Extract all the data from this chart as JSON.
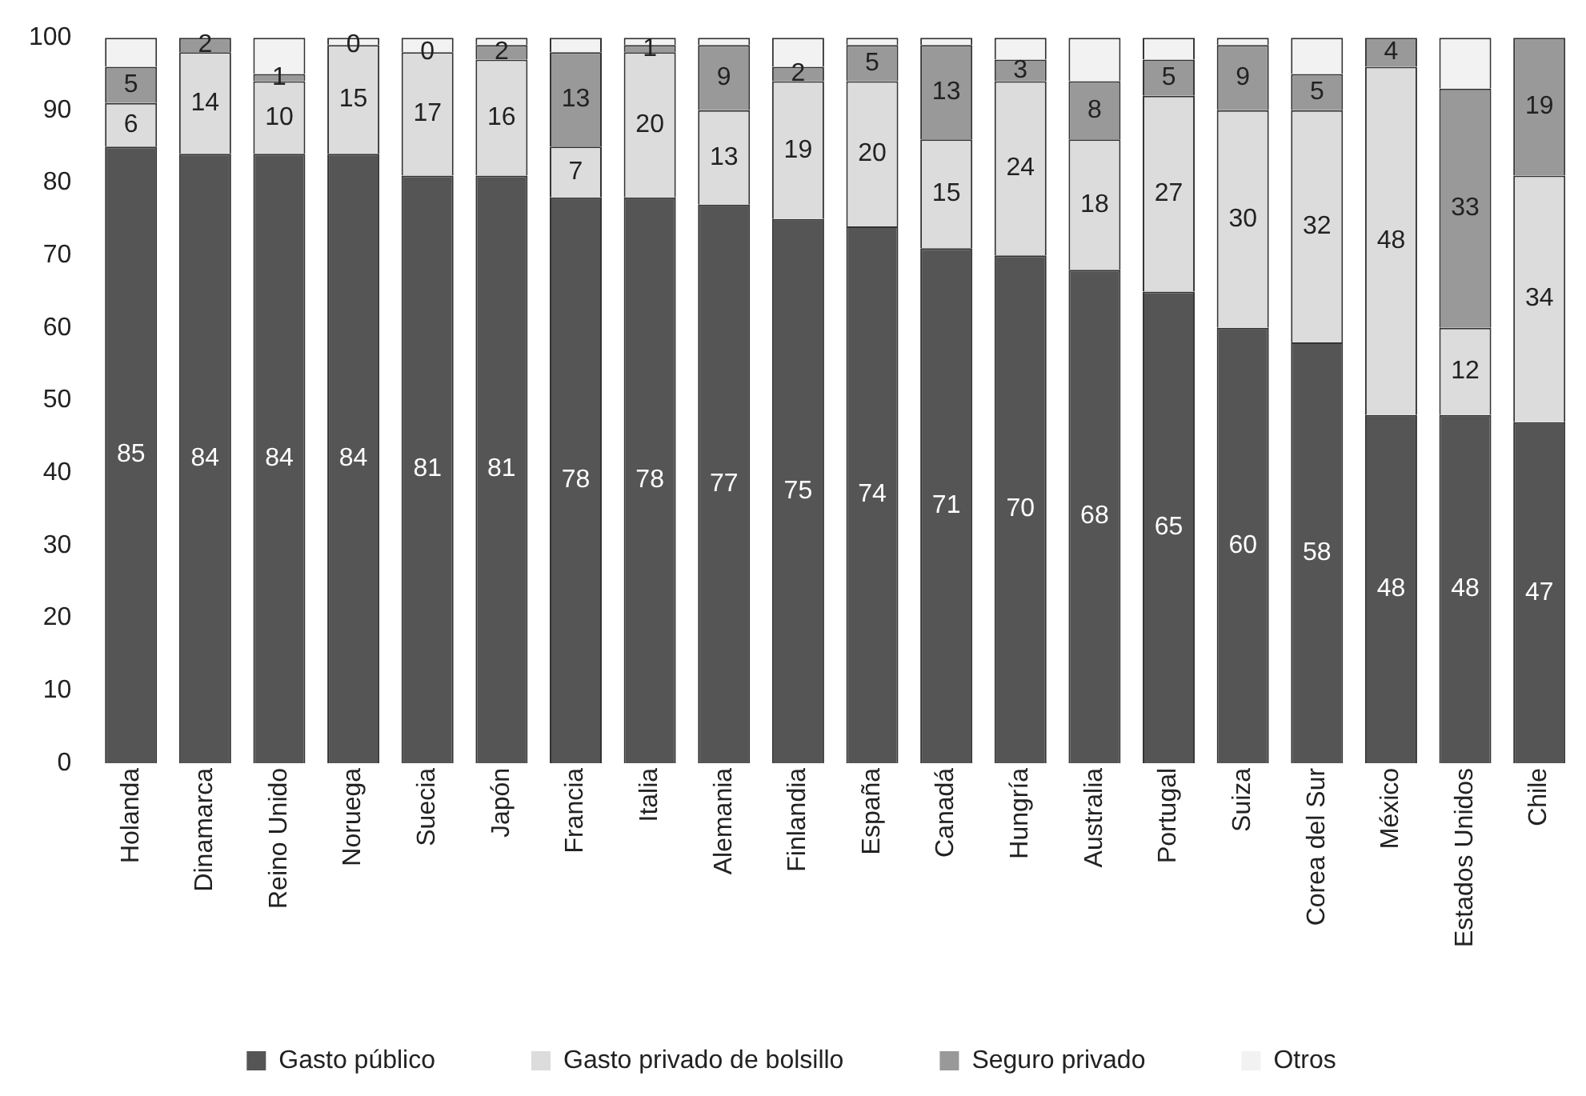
{
  "chart_data": {
    "type": "bar",
    "stacked": true,
    "categories": [
      "Holanda",
      "Dinamarca",
      "Reino Unido",
      "Noruega",
      "Suecia",
      "Japón",
      "Francia",
      "Italia",
      "Alemania",
      "Finlandia",
      "España",
      "Canadá",
      "Hungría",
      "Australia",
      "Portugal",
      "Suiza",
      "Corea del Sur",
      "México",
      "Estados Unidos",
      "Chile"
    ],
    "series": [
      {
        "name": "Gasto público",
        "color": "#555555",
        "values": [
          85,
          84,
          84,
          84,
          81,
          81,
          78,
          78,
          77,
          75,
          74,
          71,
          70,
          68,
          65,
          60,
          58,
          48,
          48,
          47
        ],
        "value_labels": [
          "85",
          "84",
          "84",
          "84",
          "81",
          "81",
          "78",
          "78",
          "77",
          "75",
          "74",
          "71",
          "70",
          "68",
          "65",
          "60",
          "58",
          "48",
          "48",
          "47"
        ]
      },
      {
        "name": "Gasto privado de bolsillo",
        "color": "#dcdcdc",
        "values": [
          6,
          14,
          10,
          15,
          17,
          16,
          7,
          20,
          13,
          19,
          20,
          15,
          24,
          18,
          27,
          30,
          32,
          48,
          12,
          34
        ],
        "value_labels": [
          "6",
          "14",
          "10",
          "15",
          "17",
          "16",
          "7",
          "20",
          "13",
          "19",
          "20",
          "15",
          "24",
          "18",
          "27",
          "30",
          "32",
          "48",
          "12",
          "34"
        ]
      },
      {
        "name": "Seguro privado",
        "color": "#999999",
        "values": [
          5,
          2,
          1,
          0,
          0,
          2,
          13,
          1,
          9,
          2,
          5,
          13,
          3,
          8,
          5,
          9,
          5,
          4,
          33,
          19
        ],
        "value_labels": [
          "5",
          "2",
          "1",
          "0",
          "0",
          "2",
          "13",
          "1",
          "9",
          "2",
          "5",
          "13",
          "3",
          "8",
          "5",
          "9",
          "5",
          "4",
          "33",
          "19"
        ]
      },
      {
        "name": "Otros",
        "color": "#f2f2f2",
        "values": [
          4,
          0,
          5,
          1,
          2,
          1,
          2,
          1,
          1,
          4,
          1,
          1,
          3,
          6,
          3,
          1,
          5,
          0,
          7,
          0
        ]
      }
    ],
    "ylim": [
      0,
      100
    ],
    "yticks": [
      0,
      10,
      20,
      30,
      40,
      50,
      60,
      70,
      80,
      90,
      100
    ],
    "grid": false,
    "legend": "bottom"
  }
}
